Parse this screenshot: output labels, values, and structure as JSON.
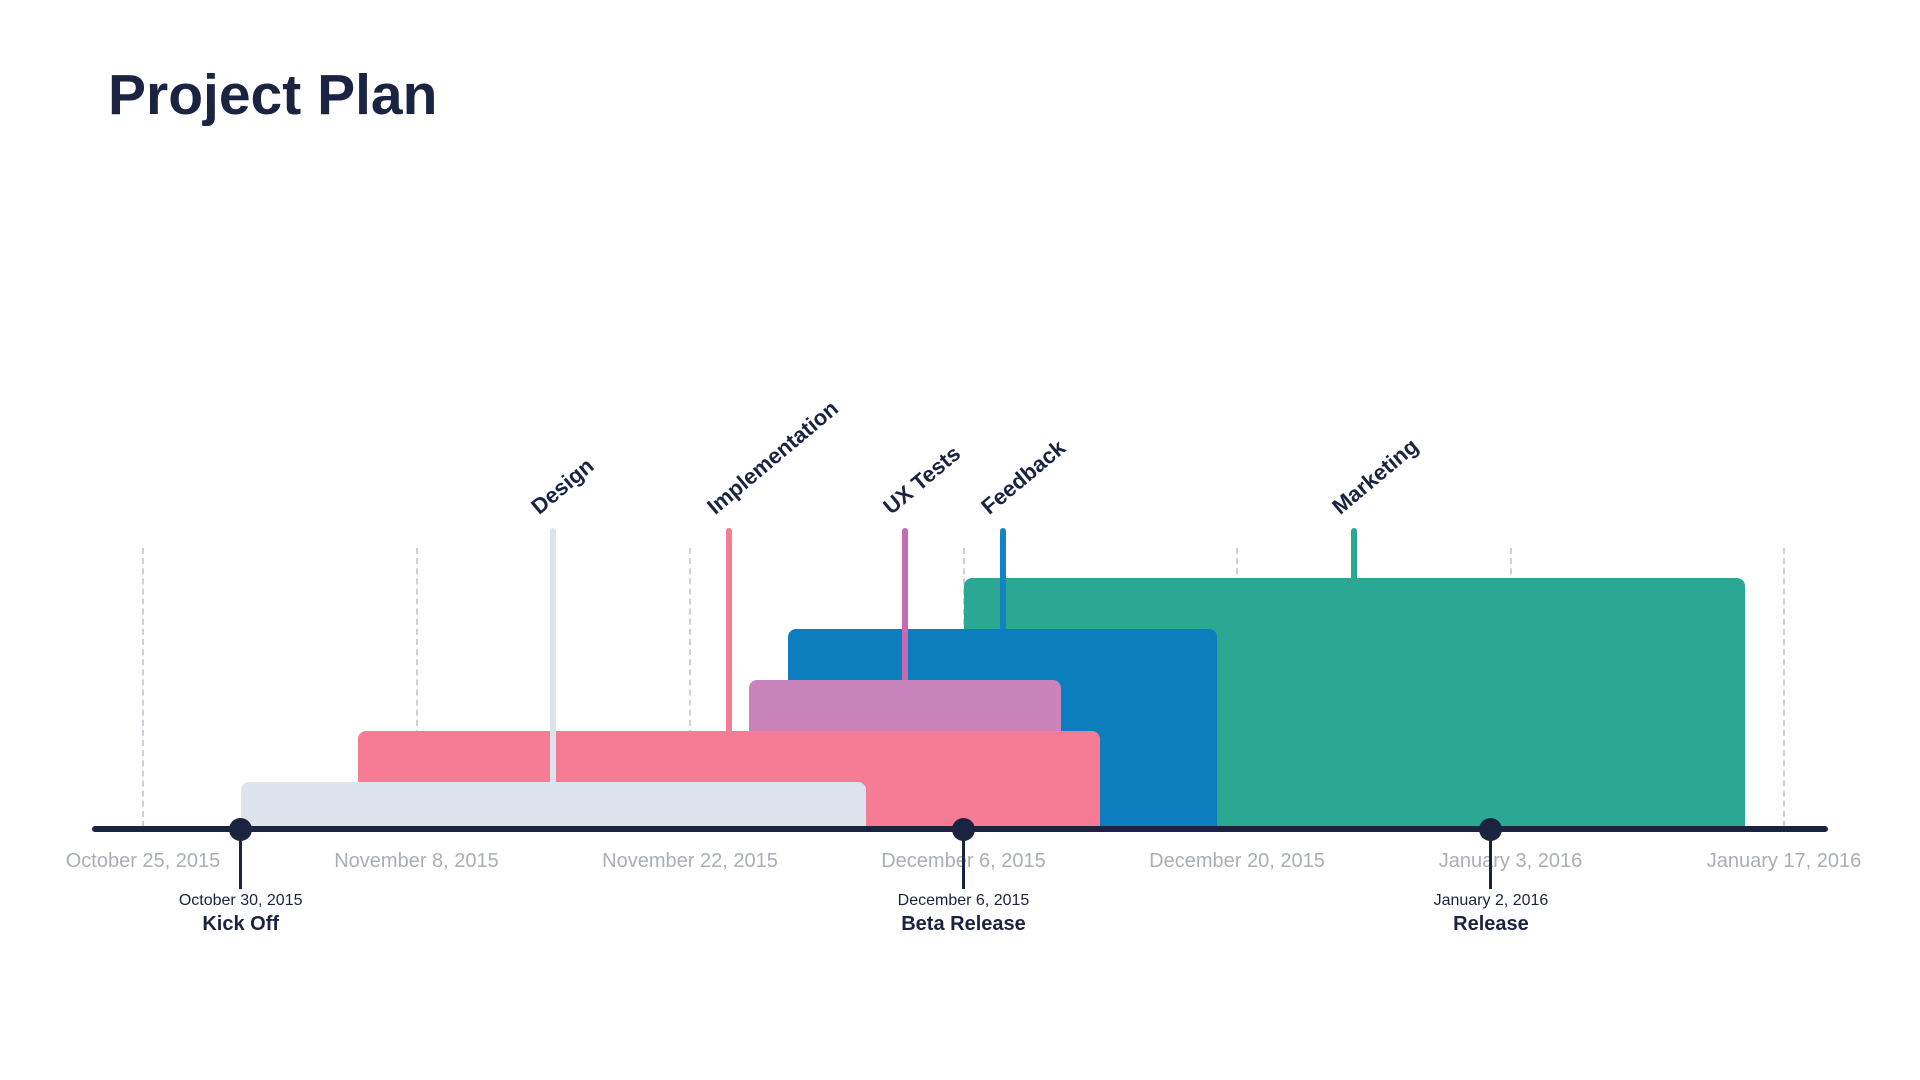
{
  "page": {
    "title": "Project Plan",
    "background": "#ffffff"
  },
  "colors": {
    "navy": "#1a2340",
    "axis_label_gray": "#a9aeb8",
    "gridline_gray": "#cdd0d6"
  },
  "chart_data": {
    "type": "gantt-timeline",
    "title": "Project Plan",
    "legend": "none",
    "grid": "vertical-dashed",
    "x_domain": {
      "start": "2015-10-25",
      "end": "2016-01-17"
    },
    "x_ticks": [
      {
        "date": "2015-10-25",
        "label": "October 25, 2015"
      },
      {
        "date": "2015-11-08",
        "label": "November 8, 2015"
      },
      {
        "date": "2015-11-22",
        "label": "November 22, 2015"
      },
      {
        "date": "2015-12-06",
        "label": "December 6, 2015"
      },
      {
        "date": "2015-12-20",
        "label": "December 20, 2015"
      },
      {
        "date": "2016-01-03",
        "label": "January 3, 2016"
      },
      {
        "date": "2016-01-17",
        "label": "January 17, 2016"
      }
    ],
    "tasks": [
      {
        "name": "Design",
        "start": "2015-10-30",
        "end": "2015-12-01",
        "color": "#dde3eb",
        "line_color": "#dde3eb"
      },
      {
        "name": "Implementation",
        "start": "2015-11-05",
        "end": "2015-12-13",
        "color": "#f67c96",
        "line_color": "#f67c96"
      },
      {
        "name": "UX Tests",
        "start": "2015-11-25",
        "end": "2015-12-11",
        "color": "#c983bb",
        "line_color": "#c76ab4"
      },
      {
        "name": "Feedback",
        "start": "2015-11-27",
        "end": "2015-12-19",
        "color": "#0d7ebd",
        "line_color": "#1583c0"
      },
      {
        "name": "Marketing",
        "start": "2015-12-06",
        "end": "2016-01-15",
        "color": "#2aa893",
        "line_color": "#2aa893"
      }
    ],
    "milestones": [
      {
        "name": "Kick Off",
        "date": "2015-10-30",
        "date_label": "October 30, 2015"
      },
      {
        "name": "Beta Release",
        "date": "2015-12-06",
        "date_label": "December 6, 2015"
      },
      {
        "name": "Release",
        "date": "2016-01-02",
        "date_label": "January 2, 2016"
      }
    ]
  }
}
